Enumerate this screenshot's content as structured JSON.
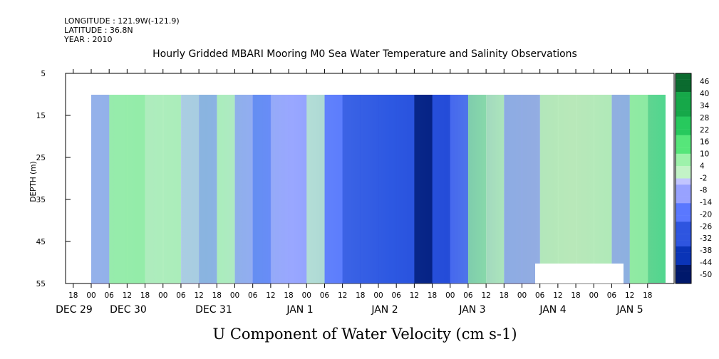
{
  "header": {
    "longitude": "LONGITUDE : 121.9W(-121.9)",
    "latitude": "LATITUDE : 36.8N",
    "year": "YEAR : 2010"
  },
  "chart_data": {
    "type": "heatmap",
    "title": "Hourly Gridded MBARI Mooring M0 Sea Water Temperature and Salinity Observations",
    "xlabel": "U Component of Water Velocity (cm s-1)",
    "ylabel": "DEPTH (m)",
    "y_ticks": [
      5,
      15,
      25,
      35,
      45,
      55
    ],
    "ylim": [
      55,
      5
    ],
    "x_hour_ticks": [
      "18",
      "00",
      "06",
      "12",
      "18",
      "00",
      "06",
      "12",
      "18",
      "00",
      "06",
      "12",
      "18",
      "00",
      "06",
      "12",
      "18",
      "00",
      "06",
      "12",
      "18",
      "00",
      "06",
      "12",
      "18",
      "00",
      "06",
      "12",
      "18",
      "00",
      "06",
      "12",
      "18",
      "00",
      "06",
      "12",
      "18"
    ],
    "x_day_labels": [
      "DEC 29",
      "DEC 30",
      "DEC 31",
      "JAN  1",
      "JAN  2",
      "JAN  3",
      "JAN  4",
      "JAN  5"
    ],
    "colorbar_ticks": [
      "46",
      "40",
      "34",
      "28",
      "22",
      "16",
      "10",
      "4",
      "-2",
      "-8",
      "-14",
      "-20",
      "-26",
      "-32",
      "-38",
      "-44",
      "-50"
    ],
    "colorbar_range": [
      -50,
      52
    ],
    "colorbar_step": 3,
    "depth_profile_columns": [
      {
        "time_hours": 0,
        "value": -4
      },
      {
        "time_hours": 6,
        "value": 8
      },
      {
        "time_hours": 12,
        "value": 12
      },
      {
        "time_hours": 18,
        "value": 6
      },
      {
        "time_hours": 24,
        "value": 4
      },
      {
        "time_hours": 30,
        "value": -2
      },
      {
        "time_hours": 36,
        "value": -6
      },
      {
        "time_hours": 42,
        "value": 6
      },
      {
        "time_hours": 48,
        "value": -8
      },
      {
        "time_hours": 54,
        "value": -16
      },
      {
        "time_hours": 60,
        "value": -10
      },
      {
        "time_hours": 66,
        "value": -4
      },
      {
        "time_hours": 72,
        "value": 2
      },
      {
        "time_hours": 78,
        "value": -18
      },
      {
        "time_hours": 84,
        "value": -26
      },
      {
        "time_hours": 90,
        "value": -28
      },
      {
        "time_hours": 96,
        "value": -24
      },
      {
        "time_hours": 102,
        "value": -30
      },
      {
        "time_hours": 108,
        "value": -44
      },
      {
        "time_hours": 114,
        "value": -30
      },
      {
        "time_hours": 120,
        "value": -12
      },
      {
        "time_hours": 126,
        "value": 10
      },
      {
        "time_hours": 132,
        "value": 4
      },
      {
        "time_hours": 138,
        "value": -6
      },
      {
        "time_hours": 144,
        "value": -4
      },
      {
        "time_hours": 150,
        "value": 2
      },
      {
        "time_hours": 156,
        "value": 6
      },
      {
        "time_hours": 162,
        "value": 4
      },
      {
        "time_hours": 168,
        "value": 2
      },
      {
        "time_hours": 174,
        "value": -6
      },
      {
        "time_hours": 180,
        "value": 8
      }
    ]
  }
}
